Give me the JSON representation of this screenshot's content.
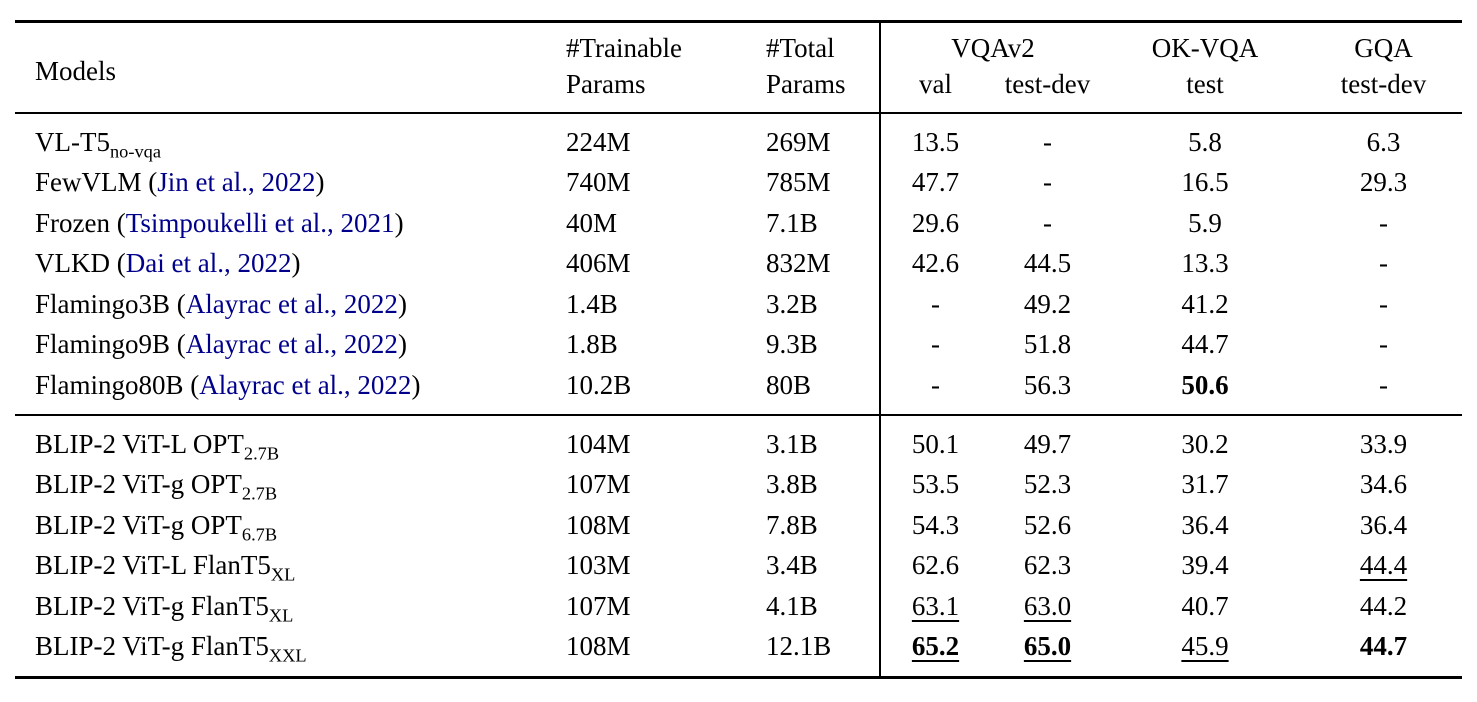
{
  "colors": {
    "citation_link": "#00008b",
    "text": "#000000",
    "background": "#ffffff",
    "rule": "#000000"
  },
  "table": {
    "header": {
      "models": "Models",
      "trainable_top": "#Trainable",
      "trainable_bottom": "Params",
      "total_top": "#Total",
      "total_bottom": "Params",
      "vqav2_group": "VQAv2",
      "vqav2_val": "val",
      "vqav2_testdev": "test-dev",
      "okvqa_group": "OK-VQA",
      "okvqa_split": "test",
      "gqa_group": "GQA",
      "gqa_split": "test-dev"
    },
    "groups": [
      {
        "rows": [
          {
            "model": {
              "base": "VL-T5",
              "sub": "no-vqa",
              "cite": null
            },
            "trainable": "224M",
            "total": "269M",
            "cells": [
              {
                "t": "13.5"
              },
              {
                "t": "-"
              },
              {
                "t": "5.8"
              },
              {
                "t": "6.3"
              }
            ]
          },
          {
            "model": {
              "base": "FewVLM",
              "sub": null,
              "cite": "Jin et al., 2022"
            },
            "trainable": "740M",
            "total": "785M",
            "cells": [
              {
                "t": "47.7"
              },
              {
                "t": "-"
              },
              {
                "t": "16.5"
              },
              {
                "t": "29.3"
              }
            ]
          },
          {
            "model": {
              "base": "Frozen",
              "sub": null,
              "cite": "Tsimpoukelli et al., 2021"
            },
            "trainable": "40M",
            "total": "7.1B",
            "cells": [
              {
                "t": "29.6"
              },
              {
                "t": "-"
              },
              {
                "t": "5.9"
              },
              {
                "t": "-"
              }
            ]
          },
          {
            "model": {
              "base": "VLKD",
              "sub": null,
              "cite": "Dai et al., 2022"
            },
            "trainable": "406M",
            "total": "832M",
            "cells": [
              {
                "t": "42.6"
              },
              {
                "t": "44.5"
              },
              {
                "t": "13.3"
              },
              {
                "t": "-"
              }
            ]
          },
          {
            "model": {
              "base": "Flamingo3B",
              "sub": null,
              "cite": "Alayrac et al., 2022"
            },
            "trainable": "1.4B",
            "total": "3.2B",
            "cells": [
              {
                "t": "-"
              },
              {
                "t": "49.2"
              },
              {
                "t": "41.2"
              },
              {
                "t": "-"
              }
            ]
          },
          {
            "model": {
              "base": "Flamingo9B",
              "sub": null,
              "cite": "Alayrac et al., 2022"
            },
            "trainable": "1.8B",
            "total": "9.3B",
            "cells": [
              {
                "t": "-"
              },
              {
                "t": "51.8"
              },
              {
                "t": "44.7"
              },
              {
                "t": "-"
              }
            ]
          },
          {
            "model": {
              "base": "Flamingo80B",
              "sub": null,
              "cite": "Alayrac et al., 2022"
            },
            "trainable": "10.2B",
            "total": "80B",
            "cells": [
              {
                "t": "-"
              },
              {
                "t": "56.3"
              },
              {
                "t": "50.6",
                "b": true
              },
              {
                "t": "-"
              }
            ]
          }
        ]
      },
      {
        "rows": [
          {
            "model": {
              "base": "BLIP-2 ViT-L OPT",
              "sub": "2.7B",
              "cite": null
            },
            "trainable": "104M",
            "total": "3.1B",
            "cells": [
              {
                "t": "50.1"
              },
              {
                "t": "49.7"
              },
              {
                "t": "30.2"
              },
              {
                "t": "33.9"
              }
            ]
          },
          {
            "model": {
              "base": "BLIP-2 ViT-g OPT",
              "sub": "2.7B",
              "cite": null
            },
            "trainable": "107M",
            "total": "3.8B",
            "cells": [
              {
                "t": "53.5"
              },
              {
                "t": "52.3"
              },
              {
                "t": "31.7"
              },
              {
                "t": "34.6"
              }
            ]
          },
          {
            "model": {
              "base": "BLIP-2 ViT-g OPT",
              "sub": "6.7B",
              "cite": null
            },
            "trainable": "108M",
            "total": "7.8B",
            "cells": [
              {
                "t": "54.3"
              },
              {
                "t": "52.6"
              },
              {
                "t": "36.4"
              },
              {
                "t": "36.4"
              }
            ]
          },
          {
            "model": {
              "base": "BLIP-2 ViT-L FlanT5",
              "sub": "XL",
              "cite": null
            },
            "trainable": "103M",
            "total": "3.4B",
            "cells": [
              {
                "t": "62.6"
              },
              {
                "t": "62.3"
              },
              {
                "t": "39.4"
              },
              {
                "t": "44.4",
                "u": true
              }
            ]
          },
          {
            "model": {
              "base": "BLIP-2 ViT-g FlanT5",
              "sub": "XL",
              "cite": null
            },
            "trainable": "107M",
            "total": "4.1B",
            "cells": [
              {
                "t": "63.1",
                "u": true
              },
              {
                "t": "63.0",
                "u": true
              },
              {
                "t": "40.7"
              },
              {
                "t": "44.2"
              }
            ]
          },
          {
            "model": {
              "base": "BLIP-2 ViT-g FlanT5",
              "sub": "XXL",
              "cite": null
            },
            "trainable": "108M",
            "total": "12.1B",
            "cells": [
              {
                "t": "65.2",
                "b": true,
                "u": true
              },
              {
                "t": "65.0",
                "b": true,
                "u": true
              },
              {
                "t": "45.9",
                "u": true
              },
              {
                "t": "44.7",
                "b": true
              }
            ]
          }
        ]
      }
    ]
  }
}
